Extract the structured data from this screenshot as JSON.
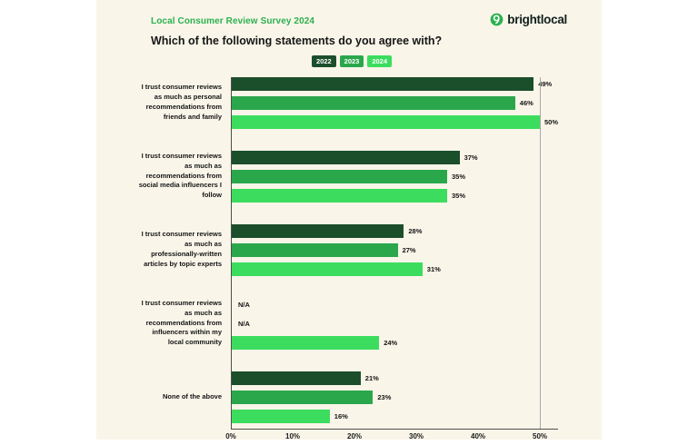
{
  "header": {
    "survey_label": "Local Consumer Review Survey 2024",
    "brand": "brightlocal",
    "question": "Which of the following statements do you agree with?"
  },
  "legend": [
    {
      "label": "2022",
      "color": "#1b4e2b"
    },
    {
      "label": "2023",
      "color": "#2aa74b"
    },
    {
      "label": "2024",
      "color": "#3cdd5e"
    }
  ],
  "chart_data": {
    "type": "bar",
    "orientation": "horizontal",
    "title": "Which of the following statements do you agree with?",
    "categories": [
      "I trust consumer reviews as much as personal recommendations from friends and family",
      "I trust consumer reviews as much as recommendations from social media influencers I follow",
      "I trust consumer reviews as much as professionally-written articles by topic experts",
      "I trust consumer reviews as much as recommendations from influencers within my local community",
      "None of the above"
    ],
    "series": [
      {
        "name": "2022",
        "color": "#1b4e2b",
        "values": [
          49,
          37,
          28,
          null,
          21
        ],
        "labels": [
          "49%",
          "37%",
          "28%",
          "N/A",
          "21%"
        ]
      },
      {
        "name": "2023",
        "color": "#2aa74b",
        "values": [
          46,
          35,
          27,
          null,
          23
        ],
        "labels": [
          "46%",
          "35%",
          "27%",
          "N/A",
          "23%"
        ]
      },
      {
        "name": "2024",
        "color": "#3cdd5e",
        "values": [
          50,
          35,
          31,
          24,
          16
        ],
        "labels": [
          "50%",
          "35%",
          "31%",
          "24%",
          "16%"
        ]
      }
    ],
    "x_ticks": [
      "0%",
      "10%",
      "20%",
      "30%",
      "40%",
      "50%"
    ],
    "xlim": [
      0,
      50
    ],
    "legend_position": "top-center",
    "grid": "vertical line at 50% only"
  }
}
